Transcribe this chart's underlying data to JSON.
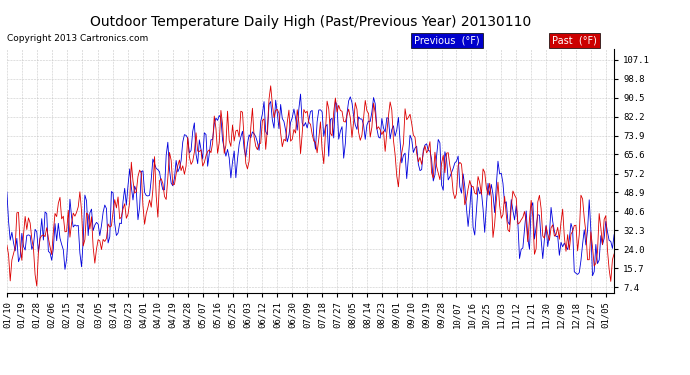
{
  "title": "Outdoor Temperature Daily High (Past/Previous Year) 20130110",
  "copyright": "Copyright 2013 Cartronics.com",
  "ylabel_right": [
    "107.1",
    "98.8",
    "90.5",
    "82.2",
    "73.9",
    "65.6",
    "57.2",
    "48.9",
    "40.6",
    "32.3",
    "24.0",
    "15.7",
    "7.4"
  ],
  "yticks": [
    107.1,
    98.8,
    90.5,
    82.2,
    73.9,
    65.6,
    57.2,
    48.9,
    40.6,
    32.3,
    24.0,
    15.7,
    7.4
  ],
  "ylim": [
    5,
    112
  ],
  "legend_previous_bg": "#0000cc",
  "legend_past_bg": "#cc0000",
  "bg_color": "#ffffff",
  "plot_bg_color": "#ffffff",
  "grid_color": "#bbbbbb",
  "line_previous_color": "#0000dd",
  "line_past_color": "#dd0000",
  "title_fontsize": 10,
  "copyright_fontsize": 6.5,
  "tick_fontsize": 6.5,
  "xtick_labels": [
    "01/10",
    "01/19",
    "01/28",
    "02/06",
    "02/15",
    "02/24",
    "03/05",
    "03/14",
    "03/23",
    "04/01",
    "04/10",
    "04/19",
    "04/28",
    "05/07",
    "05/16",
    "05/25",
    "06/03",
    "06/12",
    "06/21",
    "06/30",
    "07/09",
    "07/18",
    "07/27",
    "08/05",
    "08/14",
    "08/23",
    "09/01",
    "09/10",
    "09/19",
    "09/28",
    "10/07",
    "10/16",
    "10/25",
    "11/03",
    "11/12",
    "11/21",
    "11/30",
    "12/09",
    "12/18",
    "12/27",
    "01/05"
  ]
}
